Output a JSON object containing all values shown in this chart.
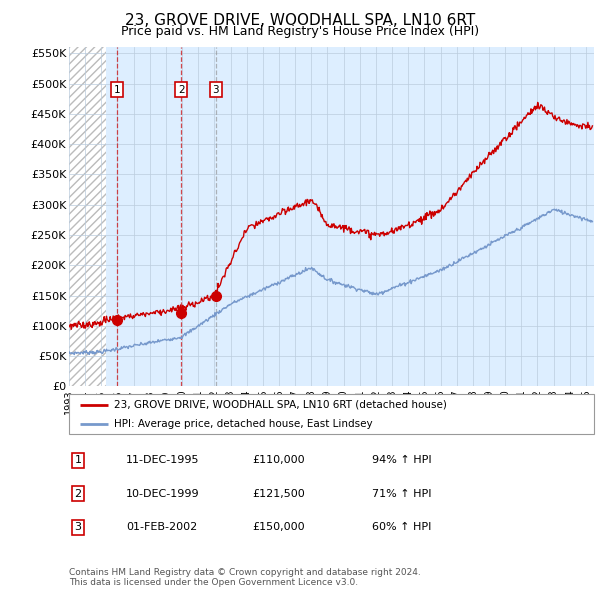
{
  "title": "23, GROVE DRIVE, WOODHALL SPA, LN10 6RT",
  "subtitle": "Price paid vs. HM Land Registry's House Price Index (HPI)",
  "ylim": [
    0,
    560000
  ],
  "yticks": [
    0,
    50000,
    100000,
    150000,
    200000,
    250000,
    300000,
    350000,
    400000,
    450000,
    500000,
    550000
  ],
  "ytick_labels": [
    "£0",
    "£50K",
    "£100K",
    "£150K",
    "£200K",
    "£250K",
    "£300K",
    "£350K",
    "£400K",
    "£450K",
    "£500K",
    "£550K"
  ],
  "xlim_start": 1993.0,
  "xlim_end": 2025.5,
  "xticks": [
    1993,
    1994,
    1995,
    1996,
    1997,
    1998,
    1999,
    2000,
    2001,
    2002,
    2003,
    2004,
    2005,
    2006,
    2007,
    2008,
    2009,
    2010,
    2011,
    2012,
    2013,
    2014,
    2015,
    2016,
    2017,
    2018,
    2019,
    2020,
    2021,
    2022,
    2023,
    2024,
    2025
  ],
  "sales": [
    {
      "date_num": 1995.95,
      "price": 110000,
      "label": "1"
    },
    {
      "date_num": 1999.95,
      "price": 121500,
      "label": "2"
    },
    {
      "date_num": 2002.08,
      "price": 150000,
      "label": "3"
    }
  ],
  "hpi_line_color": "#7799cc",
  "sale_line_color": "#cc0000",
  "legend_sale_label": "23, GROVE DRIVE, WOODHALL SPA, LN10 6RT (detached house)",
  "legend_hpi_label": "HPI: Average price, detached house, East Lindsey",
  "table_rows": [
    {
      "num": "1",
      "date": "11-DEC-1995",
      "price": "£110,000",
      "hpi": "94% ↑ HPI"
    },
    {
      "num": "2",
      "date": "10-DEC-1999",
      "price": "£121,500",
      "hpi": "71% ↑ HPI"
    },
    {
      "num": "3",
      "date": "01-FEB-2002",
      "price": "£150,000",
      "hpi": "60% ↑ HPI"
    }
  ],
  "footer": "Contains HM Land Registry data © Crown copyright and database right 2024.\nThis data is licensed under the Open Government Licence v3.0.",
  "bg_plot": "#ddeeff",
  "grid_color": "#bbccdd"
}
